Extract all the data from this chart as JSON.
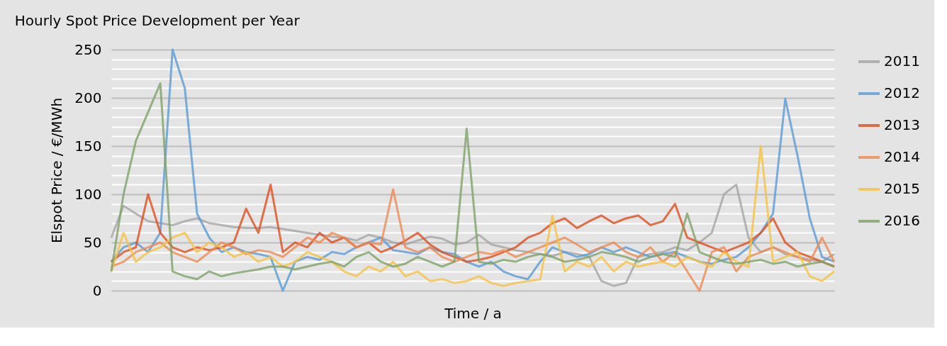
{
  "chart_data": {
    "type": "line",
    "title": "Hourly Spot Price Development per Year",
    "xlabel": "Time / a",
    "ylabel": "Elspot Price / €/MWh",
    "categories": [
      null,
      null,
      null,
      null,
      null,
      null,
      null,
      null,
      null,
      null,
      null,
      null,
      null,
      null,
      null,
      null,
      null,
      null,
      null,
      null,
      null,
      null,
      null,
      null,
      null,
      null,
      null,
      null,
      null,
      null,
      null,
      null,
      null,
      null,
      null,
      null,
      null,
      null,
      null,
      null,
      null,
      null,
      null,
      null,
      null,
      null,
      null,
      null,
      null,
      null,
      null,
      null,
      null,
      null,
      null,
      null,
      null,
      null,
      null,
      null
    ],
    "series": [
      {
        "name": "2011",
        "color": "#a5a5a5",
        "values": [
          55,
          88,
          80,
          72,
          70,
          68,
          72,
          75,
          70,
          68,
          66,
          65,
          65,
          66,
          64,
          62,
          60,
          58,
          56,
          55,
          52,
          58,
          55,
          50,
          48,
          52,
          56,
          54,
          48,
          50,
          58,
          48,
          45,
          42,
          40,
          38,
          36,
          40,
          38,
          35,
          10,
          5,
          8,
          35,
          38,
          40,
          45,
          42,
          50,
          60,
          100,
          110,
          55,
          40,
          45,
          38,
          35,
          32,
          30,
          38
        ]
      },
      {
        "name": "2012",
        "color": "#5b9bd5",
        "values": [
          30,
          45,
          50,
          40,
          60,
          250,
          210,
          80,
          55,
          40,
          45,
          40,
          38,
          35,
          0,
          30,
          35,
          32,
          40,
          38,
          45,
          50,
          55,
          42,
          40,
          38,
          45,
          40,
          38,
          30,
          25,
          30,
          20,
          15,
          12,
          30,
          45,
          40,
          35,
          38,
          45,
          40,
          45,
          40,
          35,
          38,
          40,
          35,
          30,
          28,
          32,
          35,
          45,
          60,
          80,
          199,
          140,
          75,
          35,
          30
        ]
      },
      {
        "name": "2013",
        "color": "#e04f1f",
        "values": [
          30,
          40,
          45,
          100,
          60,
          45,
          40,
          45,
          42,
          45,
          50,
          85,
          60,
          110,
          40,
          50,
          45,
          60,
          50,
          55,
          45,
          50,
          40,
          45,
          52,
          60,
          48,
          40,
          35,
          30,
          32,
          35,
          40,
          45,
          55,
          60,
          70,
          75,
          65,
          72,
          78,
          70,
          75,
          78,
          68,
          72,
          90,
          55,
          50,
          45,
          40,
          45,
          50,
          60,
          75,
          50,
          40,
          35,
          30,
          25
        ]
      },
      {
        "name": "2014",
        "color": "#ed8a51",
        "values": [
          25,
          30,
          40,
          45,
          50,
          40,
          35,
          30,
          40,
          50,
          45,
          38,
          42,
          40,
          35,
          45,
          55,
          50,
          60,
          55,
          45,
          50,
          48,
          105,
          45,
          40,
          45,
          35,
          30,
          35,
          40,
          38,
          42,
          35,
          40,
          45,
          50,
          55,
          48,
          40,
          45,
          50,
          40,
          35,
          45,
          30,
          40,
          20,
          0,
          40,
          45,
          20,
          35,
          40,
          45,
          40,
          35,
          30,
          55,
          30
        ]
      },
      {
        "name": "2015",
        "color": "#f5c242",
        "values": [
          20,
          60,
          30,
          40,
          45,
          55,
          60,
          40,
          50,
          45,
          35,
          40,
          30,
          35,
          25,
          30,
          40,
          35,
          30,
          20,
          15,
          25,
          20,
          30,
          15,
          20,
          10,
          12,
          8,
          10,
          15,
          8,
          5,
          8,
          10,
          12,
          78,
          20,
          30,
          25,
          35,
          20,
          30,
          25,
          28,
          30,
          25,
          35,
          30,
          25,
          40,
          30,
          25,
          150,
          30,
          35,
          40,
          15,
          10,
          20
        ]
      },
      {
        "name": "2016",
        "color": "#7fa36a",
        "values": [
          20,
          100,
          155,
          185,
          215,
          20,
          15,
          12,
          20,
          15,
          18,
          20,
          22,
          25,
          25,
          22,
          25,
          28,
          30,
          25,
          35,
          40,
          30,
          25,
          28,
          35,
          30,
          25,
          30,
          168,
          30,
          28,
          32,
          30,
          35,
          38,
          35,
          30,
          32,
          35,
          40,
          38,
          35,
          30,
          35,
          38,
          35,
          80,
          40,
          35,
          30,
          28,
          30,
          32,
          28,
          30,
          25,
          28,
          30,
          25
        ]
      }
    ],
    "ylim": [
      0,
      250
    ],
    "yticks": [
      0,
      {
        "value": 10,
        "label": null
      },
      {
        "value": 20,
        "label": null
      },
      {
        "value": 30,
        "label": null
      },
      {
        "value": 40,
        "label": null
      },
      50,
      {
        "value": 60,
        "label": null
      },
      {
        "value": 70,
        "label": null
      },
      {
        "value": 80,
        "label": null
      },
      {
        "value": 90,
        "label": null
      },
      100,
      {
        "value": 110,
        "label": null
      },
      {
        "value": 120,
        "label": null
      },
      {
        "value": 130,
        "label": null
      },
      {
        "value": 140,
        "label": null
      },
      150,
      {
        "value": 160,
        "label": null
      },
      {
        "value": 170,
        "label": null
      },
      {
        "value": 180,
        "label": null
      },
      {
        "value": 190,
        "label": null
      },
      200,
      {
        "value": 210,
        "label": null
      },
      {
        "value": 220,
        "label": null
      },
      {
        "value": 230,
        "label": null
      },
      {
        "value": 240,
        "label": null
      },
      250
    ],
    "grid": "y",
    "legend": "right",
    "marker": "none",
    "line_style": "solid"
  }
}
